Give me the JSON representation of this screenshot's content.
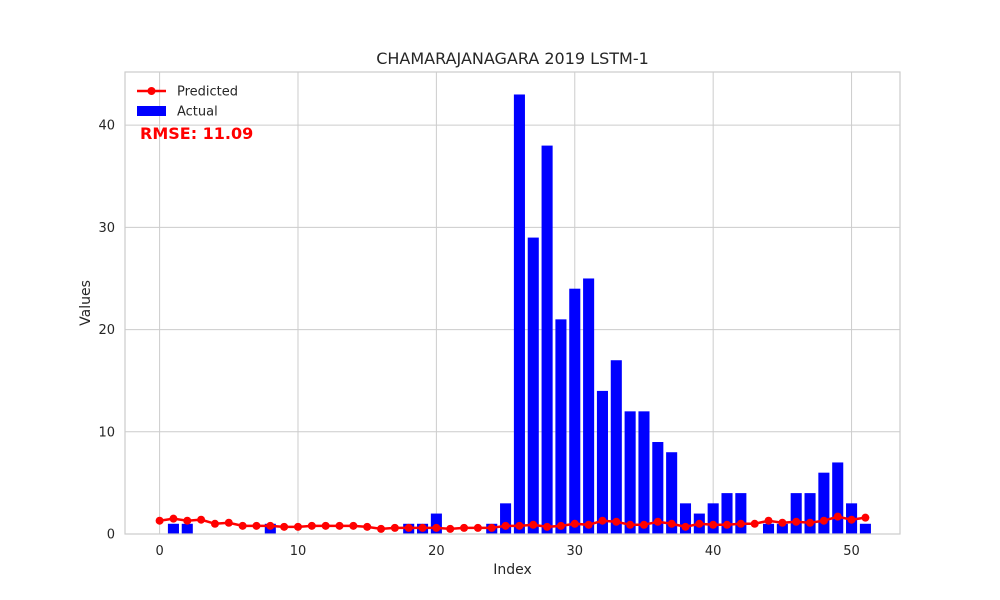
{
  "chart_data": {
    "type": "bar",
    "title": "CHAMARAJANAGARA 2019 LSTM-1",
    "xlabel": "Index",
    "ylabel": "Values",
    "xlim": [
      -2.5,
      53.5
    ],
    "ylim": [
      0,
      45.2
    ],
    "x_ticks": [
      0,
      10,
      20,
      30,
      40,
      50
    ],
    "y_ticks": [
      0,
      10,
      20,
      30,
      40
    ],
    "grid": true,
    "legend_placement": "top-left",
    "annotation": {
      "text": "RMSE: 11.09",
      "color": "#ff0000"
    },
    "series": [
      {
        "name": "Actual",
        "type": "bar",
        "color": "#0000ff",
        "x": [
          0,
          1,
          2,
          3,
          4,
          5,
          6,
          7,
          8,
          9,
          10,
          11,
          12,
          13,
          14,
          15,
          16,
          17,
          18,
          19,
          20,
          21,
          22,
          23,
          24,
          25,
          26,
          27,
          28,
          29,
          30,
          31,
          32,
          33,
          34,
          35,
          36,
          37,
          38,
          39,
          40,
          41,
          42,
          43,
          44,
          45,
          46,
          47,
          48,
          49,
          50,
          51
        ],
        "values": [
          0,
          1,
          1,
          0,
          0,
          0,
          0,
          0,
          1,
          0,
          0,
          0,
          0,
          0,
          0,
          0,
          0,
          0,
          1,
          1,
          2,
          0,
          0,
          0,
          1,
          3,
          43,
          29,
          38,
          21,
          24,
          25,
          14,
          17,
          12,
          12,
          9,
          8,
          3,
          2,
          3,
          4,
          4,
          0,
          1,
          1,
          4,
          4,
          6,
          7,
          3,
          1
        ]
      },
      {
        "name": "Predicted",
        "type": "line",
        "color": "#ff0000",
        "marker": "circle",
        "x": [
          0,
          1,
          2,
          3,
          4,
          5,
          6,
          7,
          8,
          9,
          10,
          11,
          12,
          13,
          14,
          15,
          16,
          17,
          18,
          19,
          20,
          21,
          22,
          23,
          24,
          25,
          26,
          27,
          28,
          29,
          30,
          31,
          32,
          33,
          34,
          35,
          36,
          37,
          38,
          39,
          40,
          41,
          42,
          43,
          44,
          45,
          46,
          47,
          48,
          49,
          50,
          51
        ],
        "values": [
          1.3,
          1.5,
          1.3,
          1.4,
          1.0,
          1.1,
          0.8,
          0.8,
          0.8,
          0.7,
          0.7,
          0.8,
          0.8,
          0.8,
          0.8,
          0.7,
          0.5,
          0.6,
          0.6,
          0.6,
          0.6,
          0.5,
          0.6,
          0.6,
          0.6,
          0.8,
          0.8,
          0.9,
          0.7,
          0.8,
          1.0,
          0.9,
          1.3,
          1.2,
          0.9,
          0.9,
          1.2,
          1.0,
          0.7,
          1.0,
          0.9,
          0.9,
          1.0,
          1.0,
          1.3,
          1.1,
          1.2,
          1.1,
          1.3,
          1.7,
          1.4,
          1.6
        ]
      }
    ]
  }
}
